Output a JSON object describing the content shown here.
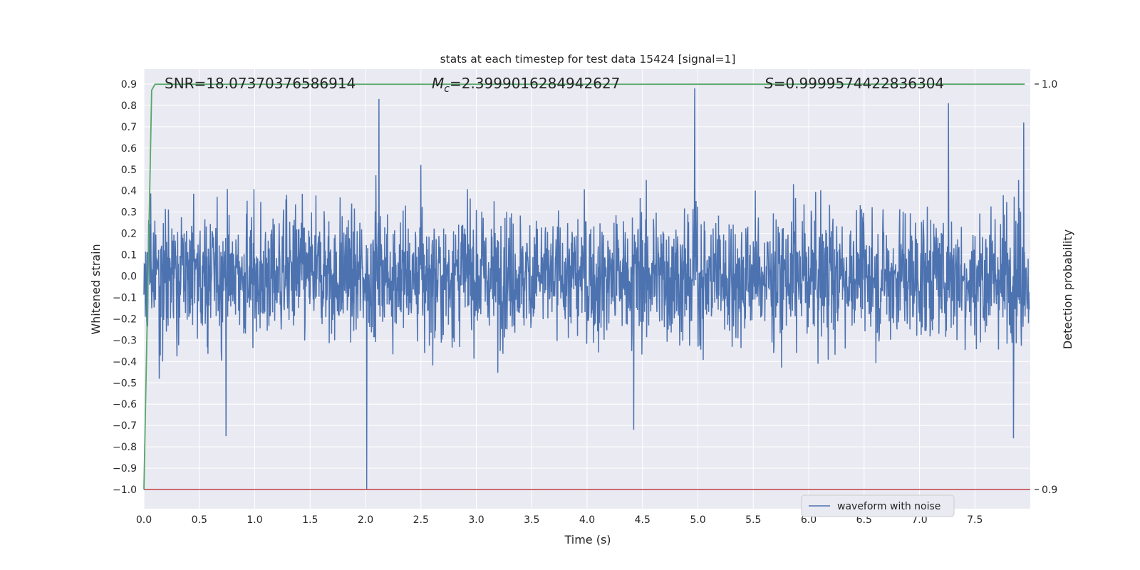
{
  "chart_data": {
    "type": "line",
    "title": "stats at each timestep for test data 15424 [signal=1]",
    "xlabel": "Time (s)",
    "ylabel": "Whitened strain",
    "y2label": "Detection probability",
    "xlim": [
      0.0,
      8.0
    ],
    "ylim": [
      -1.09,
      0.97
    ],
    "y2lim": [
      0.9,
      1.0
    ],
    "x_ticks": [
      "0.0",
      "0.5",
      "1.0",
      "1.5",
      "2.0",
      "2.5",
      "3.0",
      "3.5",
      "4.0",
      "4.5",
      "5.0",
      "5.5",
      "6.0",
      "6.5",
      "7.0",
      "7.5"
    ],
    "y_ticks": [
      "0.9",
      "0.8",
      "0.7",
      "0.6",
      "0.5",
      "0.4",
      "0.3",
      "0.2",
      "0.1",
      "0.0",
      "−0.1",
      "−0.2",
      "−0.3",
      "−0.4",
      "−0.5",
      "−0.6",
      "−0.7",
      "−0.8",
      "−0.9",
      "−1.0"
    ],
    "y2_ticks": [
      "1.0",
      "0.9"
    ],
    "grid": true,
    "legend": {
      "position": "lower-center-right",
      "entries": [
        "waveform with noise"
      ]
    },
    "annotations": {
      "snr": "SNR=18.07370376586914",
      "mc_prefix": "M",
      "mc_sub": "c",
      "mc_value": "=2.3999016284942627",
      "s_prefix": "S",
      "s_value": "=0.9999574422836304"
    },
    "series": [
      {
        "name": "waveform with noise",
        "axis": "left",
        "color": "#4c72b0",
        "description": "whitened strain noise with ~±0.45 typical amplitude",
        "spikes": [
          {
            "x": 2.01,
            "y": -1.0
          },
          {
            "x": 2.12,
            "y": 0.83
          },
          {
            "x": 4.97,
            "y": 0.88
          },
          {
            "x": 7.26,
            "y": 0.81
          },
          {
            "x": 7.94,
            "y": 0.72
          },
          {
            "x": 0.74,
            "y": -0.75
          },
          {
            "x": 4.42,
            "y": -0.72
          },
          {
            "x": 7.85,
            "y": -0.76
          }
        ]
      },
      {
        "axis": "right",
        "color": "#55a868",
        "x": [
          0.0,
          0.07,
          0.1,
          7.95
        ],
        "y": [
          0.9,
          0.9985,
          0.99995,
          0.99996
        ]
      },
      {
        "axis": "left",
        "color": "#c44e52",
        "x": [
          0.0,
          8.0
        ],
        "y": [
          -1.0,
          -1.0
        ]
      }
    ]
  },
  "colors": {
    "plot_bg": "#eaeaf2",
    "grid": "#ffffff",
    "waveform": "#4c72b0",
    "probability": "#55a868",
    "threshold": "#c44e52"
  }
}
